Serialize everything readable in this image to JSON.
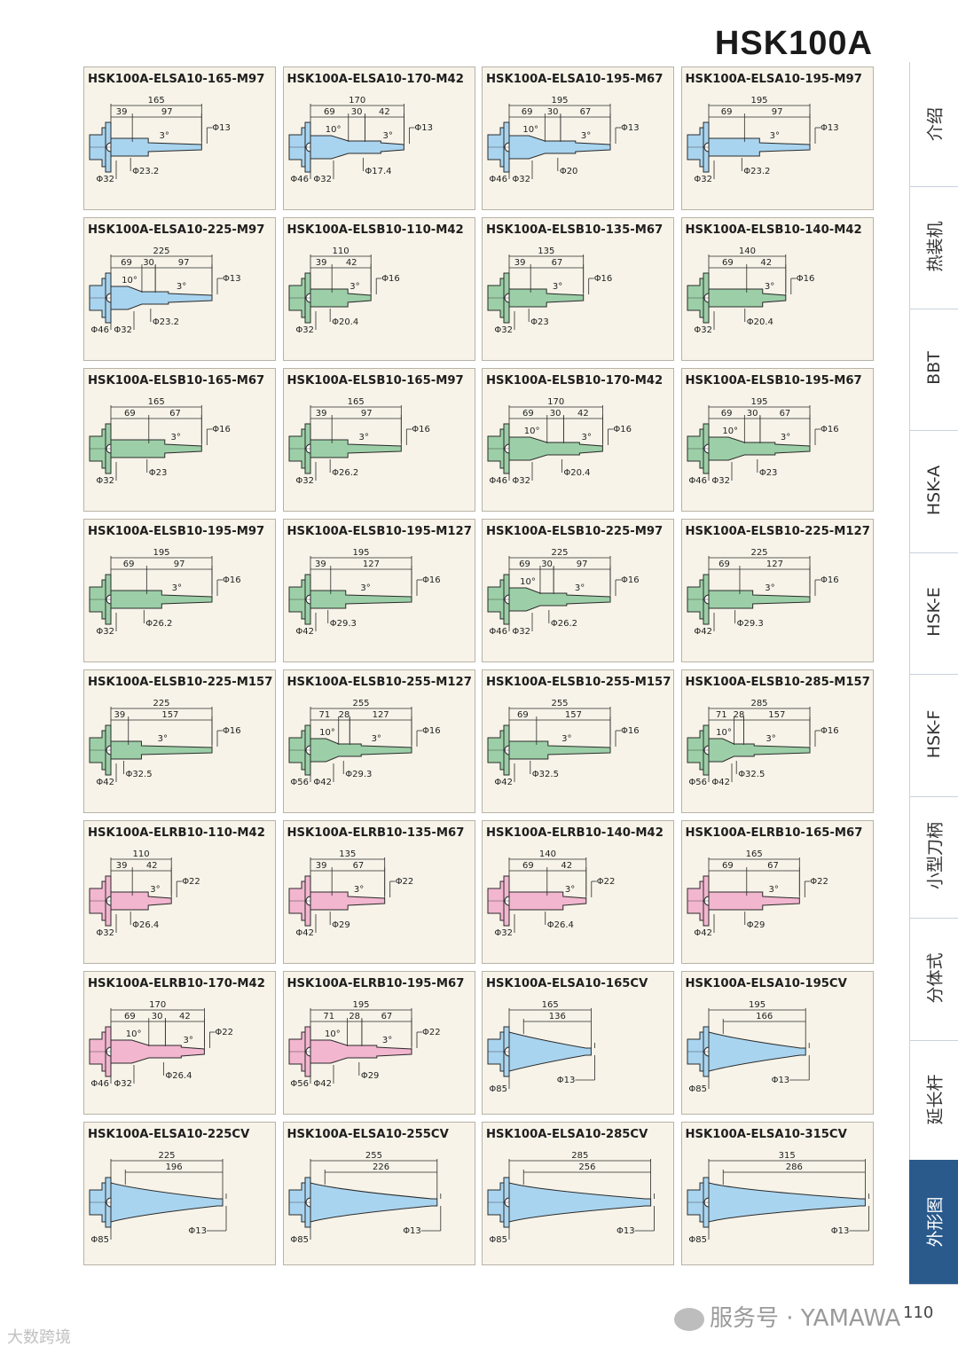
{
  "page": {
    "title": "HSK100A",
    "page_number": "110"
  },
  "nav_tabs": [
    {
      "label": "介绍",
      "active": false
    },
    {
      "label": "热装机",
      "active": false
    },
    {
      "label": "BBT",
      "active": false
    },
    {
      "label": "HSK-A",
      "active": false
    },
    {
      "label": "HSK-E",
      "active": false
    },
    {
      "label": "HSK-F",
      "active": false
    },
    {
      "label": "小型刀柄",
      "active": false
    },
    {
      "label": "分体式",
      "active": false
    },
    {
      "label": "延长杆",
      "active": false
    },
    {
      "label": "外形图",
      "active": true
    }
  ],
  "watermark": {
    "footer": "服务号 · YAMAWA",
    "left": "大数跨境"
  },
  "colors": {
    "blue": "#a9d4ef",
    "green": "#9ccfa7",
    "pink": "#f2b6cf",
    "stroke": "#2b2b2b",
    "accent": "#2a5a8c"
  },
  "cards": [
    {
      "title": "HSK100A-ELSA10-165-M97",
      "color": "blue",
      "style": "A",
      "total": "165",
      "segs": [
        "39",
        "97"
      ],
      "angle": "3°",
      "tip": "Φ13",
      "phis": [
        "Φ32",
        "Φ23.2"
      ]
    },
    {
      "title": "HSK100A-ELSA10-170-M42",
      "color": "blue",
      "style": "B",
      "total": "170",
      "segs": [
        "69",
        "30",
        "42"
      ],
      "angle2": "10°",
      "angle": "3°",
      "tip": "Φ13",
      "phis": [
        "Φ46",
        "Φ32",
        "Φ17.4"
      ]
    },
    {
      "title": "HSK100A-ELSA10-195-M67",
      "color": "blue",
      "style": "B",
      "total": "195",
      "segs": [
        "69",
        "30",
        "67"
      ],
      "angle2": "10°",
      "angle": "3°",
      "tip": "Φ13",
      "phis": [
        "Φ46",
        "Φ32",
        "Φ20"
      ]
    },
    {
      "title": "HSK100A-ELSA10-195-M97",
      "color": "blue",
      "style": "A",
      "total": "195",
      "segs": [
        "69",
        "97"
      ],
      "angle": "3°",
      "tip": "Φ13",
      "phis": [
        "Φ32",
        "Φ23.2"
      ]
    },
    {
      "title": "HSK100A-ELSA10-225-M97",
      "color": "blue",
      "style": "B",
      "total": "225",
      "segs": [
        "69",
        "30",
        "97"
      ],
      "angle2": "10°",
      "angle": "3°",
      "tip": "Φ13",
      "phis": [
        "Φ46",
        "Φ32",
        "Φ23.2"
      ]
    },
    {
      "title": "HSK100A-ELSB10-110-M42",
      "color": "green",
      "style": "A",
      "total": "110",
      "segs": [
        "39",
        "42"
      ],
      "angle": "3°",
      "tip": "Φ16",
      "phis": [
        "Φ32",
        "Φ20.4"
      ]
    },
    {
      "title": "HSK100A-ELSB10-135-M67",
      "color": "green",
      "style": "A",
      "total": "135",
      "segs": [
        "39",
        "67"
      ],
      "angle": "3°",
      "tip": "Φ16",
      "phis": [
        "Φ32",
        "Φ23"
      ]
    },
    {
      "title": "HSK100A-ELSB10-140-M42",
      "color": "green",
      "style": "A",
      "total": "140",
      "segs": [
        "69",
        "42"
      ],
      "angle": "3°",
      "tip": "Φ16",
      "phis": [
        "Φ32",
        "Φ20.4"
      ]
    },
    {
      "title": "HSK100A-ELSB10-165-M67",
      "color": "green",
      "style": "A",
      "total": "165",
      "segs": [
        "69",
        "67"
      ],
      "angle": "3°",
      "tip": "Φ16",
      "phis": [
        "Φ32",
        "Φ23"
      ]
    },
    {
      "title": "HSK100A-ELSB10-165-M97",
      "color": "green",
      "style": "A",
      "total": "165",
      "segs": [
        "39",
        "97"
      ],
      "angle": "3°",
      "tip": "Φ16",
      "phis": [
        "Φ32",
        "Φ26.2"
      ]
    },
    {
      "title": "HSK100A-ELSB10-170-M42",
      "color": "green",
      "style": "B",
      "total": "170",
      "segs": [
        "69",
        "30",
        "42"
      ],
      "angle2": "10°",
      "angle": "3°",
      "tip": "Φ16",
      "phis": [
        "Φ46",
        "Φ32",
        "Φ20.4"
      ]
    },
    {
      "title": "HSK100A-ELSB10-195-M67",
      "color": "green",
      "style": "B",
      "total": "195",
      "segs": [
        "69",
        "30",
        "67"
      ],
      "angle2": "10°",
      "angle": "3°",
      "tip": "Φ16",
      "phis": [
        "Φ46",
        "Φ32",
        "Φ23"
      ]
    },
    {
      "title": "HSK100A-ELSB10-195-M97",
      "color": "green",
      "style": "A",
      "total": "195",
      "segs": [
        "69",
        "97"
      ],
      "angle": "3°",
      "tip": "Φ16",
      "phis": [
        "Φ32",
        "Φ26.2"
      ]
    },
    {
      "title": "HSK100A-ELSB10-195-M127",
      "color": "green",
      "style": "A",
      "total": "195",
      "segs": [
        "39",
        "127"
      ],
      "angle": "3°",
      "tip": "Φ16",
      "phis": [
        "Φ42",
        "Φ29.3"
      ]
    },
    {
      "title": "HSK100A-ELSB10-225-M97",
      "color": "green",
      "style": "B",
      "total": "225",
      "segs": [
        "69",
        "30",
        "97"
      ],
      "angle2": "10°",
      "angle": "3°",
      "tip": "Φ16",
      "phis": [
        "Φ46",
        "Φ32",
        "Φ26.2"
      ]
    },
    {
      "title": "HSK100A-ELSB10-225-M127",
      "color": "green",
      "style": "A",
      "total": "225",
      "segs": [
        "69",
        "127"
      ],
      "angle": "3°",
      "tip": "Φ16",
      "phis": [
        "Φ42",
        "Φ29.3"
      ]
    },
    {
      "title": "HSK100A-ELSB10-225-M157",
      "color": "green",
      "style": "A",
      "total": "225",
      "segs": [
        "39",
        "157"
      ],
      "angle": "3°",
      "tip": "Φ16",
      "phis": [
        "Φ42",
        "Φ32.5"
      ]
    },
    {
      "title": "HSK100A-ELSB10-255-M127",
      "color": "green",
      "style": "B",
      "total": "255",
      "segs": [
        "71",
        "28",
        "127"
      ],
      "angle2": "10°",
      "angle": "3°",
      "tip": "Φ16",
      "phis": [
        "Φ56",
        "Φ42",
        "Φ29.3"
      ]
    },
    {
      "title": "HSK100A-ELSB10-255-M157",
      "color": "green",
      "style": "A",
      "total": "255",
      "segs": [
        "69",
        "157"
      ],
      "angle": "3°",
      "tip": "Φ16",
      "phis": [
        "Φ42",
        "Φ32.5"
      ]
    },
    {
      "title": "HSK100A-ELSB10-285-M157",
      "color": "green",
      "style": "B",
      "total": "285",
      "segs": [
        "71",
        "28",
        "157"
      ],
      "angle2": "10°",
      "angle": "3°",
      "tip": "Φ16",
      "phis": [
        "Φ56",
        "Φ42",
        "Φ32.5"
      ]
    },
    {
      "title": "HSK100A-ELRB10-110-M42",
      "color": "pink",
      "style": "A",
      "total": "110",
      "segs": [
        "39",
        "42"
      ],
      "angle": "3°",
      "tip": "Φ22",
      "phis": [
        "Φ32",
        "Φ26.4"
      ]
    },
    {
      "title": "HSK100A-ELRB10-135-M67",
      "color": "pink",
      "style": "A",
      "total": "135",
      "segs": [
        "39",
        "67"
      ],
      "angle": "3°",
      "tip": "Φ22",
      "phis": [
        "Φ42",
        "Φ29"
      ]
    },
    {
      "title": "HSK100A-ELRB10-140-M42",
      "color": "pink",
      "style": "A",
      "total": "140",
      "segs": [
        "69",
        "42"
      ],
      "angle": "3°",
      "tip": "Φ22",
      "phis": [
        "Φ32",
        "Φ26.4"
      ]
    },
    {
      "title": "HSK100A-ELRB10-165-M67",
      "color": "pink",
      "style": "A",
      "total": "165",
      "segs": [
        "69",
        "67"
      ],
      "angle": "3°",
      "tip": "Φ22",
      "phis": [
        "Φ42",
        "Φ29"
      ]
    },
    {
      "title": "HSK100A-ELRB10-170-M42",
      "color": "pink",
      "style": "B",
      "total": "170",
      "segs": [
        "69",
        "30",
        "42"
      ],
      "angle2": "10°",
      "angle": "3°",
      "tip": "Φ22",
      "phis": [
        "Φ46",
        "Φ32",
        "Φ26.4"
      ]
    },
    {
      "title": "HSK100A-ELRB10-195-M67",
      "color": "pink",
      "style": "B",
      "total": "195",
      "segs": [
        "71",
        "28",
        "67"
      ],
      "angle2": "10°",
      "angle": "3°",
      "tip": "Φ22",
      "phis": [
        "Φ56",
        "Φ42",
        "Φ29"
      ]
    },
    {
      "title": "HSK100A-ELSA10-165CV",
      "color": "blue",
      "style": "CV",
      "total": "165",
      "segs": [
        "136"
      ],
      "tip": "Φ13",
      "phis": [
        "Φ85"
      ]
    },
    {
      "title": "HSK100A-ELSA10-195CV",
      "color": "blue",
      "style": "CV",
      "total": "195",
      "segs": [
        "166"
      ],
      "tip": "Φ13",
      "phis": [
        "Φ85"
      ]
    },
    {
      "title": "HSK100A-ELSA10-225CV",
      "color": "blue",
      "style": "CV",
      "total": "225",
      "segs": [
        "196"
      ],
      "tip": "Φ13",
      "phis": [
        "Φ85"
      ]
    },
    {
      "title": "HSK100A-ELSA10-255CV",
      "color": "blue",
      "style": "CV",
      "total": "255",
      "segs": [
        "226"
      ],
      "tip": "Φ13",
      "phis": [
        "Φ85"
      ]
    },
    {
      "title": "HSK100A-ELSA10-285CV",
      "color": "blue",
      "style": "CV",
      "total": "285",
      "segs": [
        "256"
      ],
      "tip": "Φ13",
      "phis": [
        "Φ85"
      ]
    },
    {
      "title": "HSK100A-ELSA10-315CV",
      "color": "blue",
      "style": "CV",
      "total": "315",
      "segs": [
        "286"
      ],
      "tip": "Φ13",
      "phis": [
        "Φ85"
      ]
    }
  ]
}
